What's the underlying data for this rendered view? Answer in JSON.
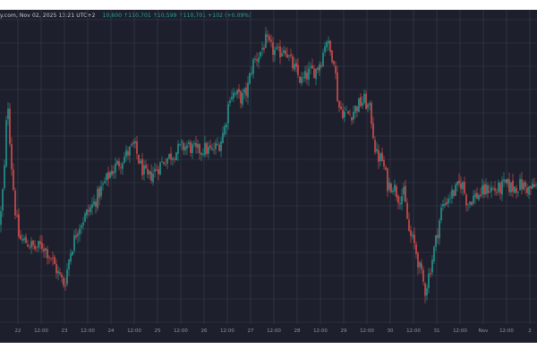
{
  "header": {
    "source_date": "y.com, Nov 02, 2025 13:21 UTC+2",
    "ohlc_text": "10,600  ↑110,701  ↑10,599  ↑110,701  +102 (+0.09%)"
  },
  "colors": {
    "background": "#1d1f2c",
    "grid": "#3a3e4c",
    "up": "#26a69a",
    "down": "#ef5350",
    "axis_text": "#8f93a3"
  },
  "chart_data": {
    "type": "candlestick",
    "grid": true,
    "x_axis_ticks": [
      "22",
      "12:00",
      "23",
      "12:00",
      "24",
      "12:00",
      "25",
      "12:00",
      "26",
      "12:00",
      "27",
      "12:00",
      "28",
      "12:00",
      "29",
      "12:00",
      "30",
      "12:00",
      "31",
      "12:00",
      "Nov",
      "12:00",
      "2"
    ],
    "price_path": [
      {
        "t": 0.0,
        "p": 0.33
      },
      {
        "t": 0.008,
        "p": 0.5
      },
      {
        "t": 0.014,
        "p": 0.76
      },
      {
        "t": 0.02,
        "p": 0.56
      },
      {
        "t": 0.028,
        "p": 0.38
      },
      {
        "t": 0.036,
        "p": 0.28
      },
      {
        "t": 0.05,
        "p": 0.27
      },
      {
        "t": 0.065,
        "p": 0.25
      },
      {
        "t": 0.08,
        "p": 0.26
      },
      {
        "t": 0.095,
        "p": 0.22
      },
      {
        "t": 0.11,
        "p": 0.16
      },
      {
        "t": 0.12,
        "p": 0.13
      },
      {
        "t": 0.13,
        "p": 0.23
      },
      {
        "t": 0.145,
        "p": 0.32
      },
      {
        "t": 0.16,
        "p": 0.36
      },
      {
        "t": 0.175,
        "p": 0.4
      },
      {
        "t": 0.19,
        "p": 0.45
      },
      {
        "t": 0.205,
        "p": 0.5
      },
      {
        "t": 0.22,
        "p": 0.53
      },
      {
        "t": 0.235,
        "p": 0.56
      },
      {
        "t": 0.25,
        "p": 0.59
      },
      {
        "t": 0.262,
        "p": 0.52
      },
      {
        "t": 0.275,
        "p": 0.48
      },
      {
        "t": 0.29,
        "p": 0.51
      },
      {
        "t": 0.305,
        "p": 0.54
      },
      {
        "t": 0.32,
        "p": 0.56
      },
      {
        "t": 0.335,
        "p": 0.58
      },
      {
        "t": 0.35,
        "p": 0.59
      },
      {
        "t": 0.365,
        "p": 0.57
      },
      {
        "t": 0.38,
        "p": 0.58
      },
      {
        "t": 0.395,
        "p": 0.57
      },
      {
        "t": 0.41,
        "p": 0.6
      },
      {
        "t": 0.42,
        "p": 0.66
      },
      {
        "t": 0.428,
        "p": 0.76
      },
      {
        "t": 0.438,
        "p": 0.76
      },
      {
        "t": 0.45,
        "p": 0.745
      },
      {
        "t": 0.46,
        "p": 0.77
      },
      {
        "t": 0.47,
        "p": 0.86
      },
      {
        "t": 0.482,
        "p": 0.89
      },
      {
        "t": 0.495,
        "p": 0.935
      },
      {
        "t": 0.505,
        "p": 0.91
      },
      {
        "t": 0.518,
        "p": 0.89
      },
      {
        "t": 0.53,
        "p": 0.92
      },
      {
        "t": 0.54,
        "p": 0.87
      },
      {
        "t": 0.552,
        "p": 0.83
      },
      {
        "t": 0.562,
        "p": 0.8
      },
      {
        "t": 0.575,
        "p": 0.83
      },
      {
        "t": 0.588,
        "p": 0.84
      },
      {
        "t": 0.6,
        "p": 0.88
      },
      {
        "t": 0.607,
        "p": 0.95
      },
      {
        "t": 0.614,
        "p": 0.9
      },
      {
        "t": 0.622,
        "p": 0.88
      },
      {
        "t": 0.63,
        "p": 0.72
      },
      {
        "t": 0.64,
        "p": 0.7
      },
      {
        "t": 0.652,
        "p": 0.69
      },
      {
        "t": 0.665,
        "p": 0.72
      },
      {
        "t": 0.678,
        "p": 0.74
      },
      {
        "t": 0.69,
        "p": 0.7
      },
      {
        "t": 0.7,
        "p": 0.56
      },
      {
        "t": 0.712,
        "p": 0.54
      },
      {
        "t": 0.722,
        "p": 0.46
      },
      {
        "t": 0.732,
        "p": 0.46
      },
      {
        "t": 0.742,
        "p": 0.42
      },
      {
        "t": 0.752,
        "p": 0.43
      },
      {
        "t": 0.762,
        "p": 0.3
      },
      {
        "t": 0.772,
        "p": 0.26
      },
      {
        "t": 0.782,
        "p": 0.18
      },
      {
        "t": 0.792,
        "p": 0.11
      },
      {
        "t": 0.802,
        "p": 0.19
      },
      {
        "t": 0.812,
        "p": 0.28
      },
      {
        "t": 0.822,
        "p": 0.38
      },
      {
        "t": 0.835,
        "p": 0.42
      },
      {
        "t": 0.848,
        "p": 0.44
      },
      {
        "t": 0.86,
        "p": 0.47
      },
      {
        "t": 0.87,
        "p": 0.4
      },
      {
        "t": 0.882,
        "p": 0.42
      },
      {
        "t": 0.895,
        "p": 0.43
      },
      {
        "t": 0.91,
        "p": 0.45
      },
      {
        "t": 0.925,
        "p": 0.44
      },
      {
        "t": 0.94,
        "p": 0.46
      },
      {
        "t": 0.955,
        "p": 0.45
      },
      {
        "t": 0.97,
        "p": 0.46
      },
      {
        "t": 0.985,
        "p": 0.445
      },
      {
        "t": 1.0,
        "p": 0.455
      }
    ]
  }
}
